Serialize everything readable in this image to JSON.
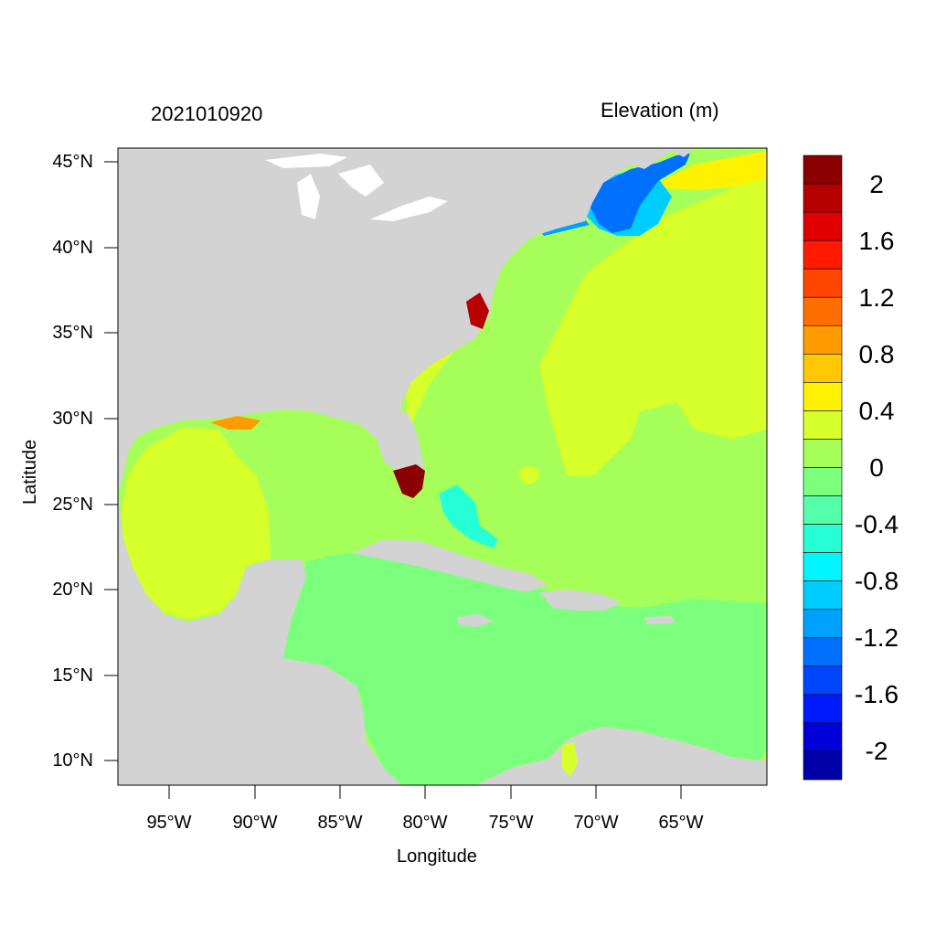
{
  "titles": {
    "left": "2021010920",
    "right": "Elevation (m)"
  },
  "axes": {
    "xlabel": "Longitude",
    "ylabel": "Latitude",
    "xticks": [
      "95°W",
      "90°W",
      "85°W",
      "80°W",
      "75°W",
      "70°W",
      "65°W"
    ],
    "yticks": [
      "45°N",
      "40°N",
      "35°N",
      "30°N",
      "25°N",
      "20°N",
      "15°N",
      "10°N"
    ]
  },
  "colorbar": {
    "labels": [
      "2",
      "1.6",
      "1.2",
      "0.8",
      "0.4",
      "0",
      "-0.4",
      "-0.8",
      "-1.2",
      "-1.6",
      "-2"
    ],
    "colors": [
      "#8b0000",
      "#b70000",
      "#e00000",
      "#ff1a00",
      "#ff4500",
      "#ff6e00",
      "#ff9a00",
      "#ffc800",
      "#fff200",
      "#d7ff2a",
      "#a5ff58",
      "#7cff7c",
      "#55ffaa",
      "#26ffd5",
      "#00f5ff",
      "#00cdff",
      "#00a0ff",
      "#0070ff",
      "#0045ff",
      "#001aff",
      "#0000d8",
      "#0000a8"
    ]
  },
  "colors": {
    "land": "#d3d3d3",
    "gulf": "#d7ff2a",
    "caribbean": "#7cff7c",
    "atlantic_warm": "#a5ff58",
    "gulf_of_maine": "#0070ff",
    "south_florida": "#8b0000"
  }
}
